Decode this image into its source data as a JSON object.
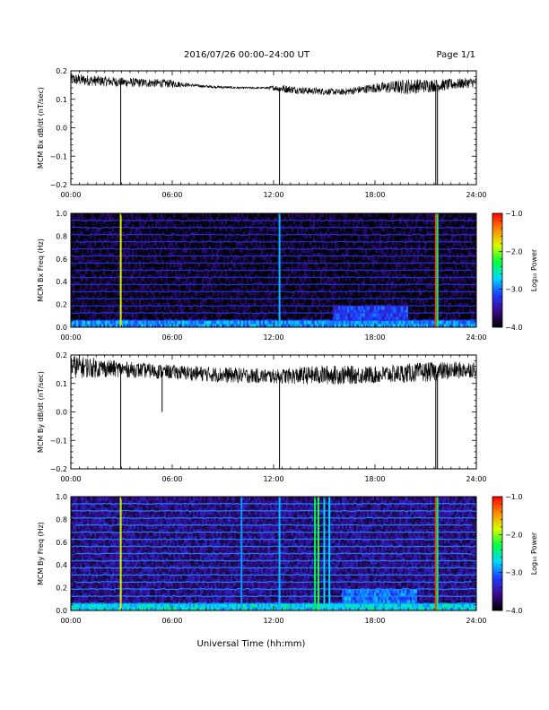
{
  "header": {
    "title": "2016/07/26  00:00–24:00 UT",
    "page": "Page 1/1"
  },
  "footer": {
    "xlabel": "Universal Time (hh:mm)"
  },
  "colorbar": {
    "label": "Log₁₀ Power",
    "ticks": [
      "−1.0",
      "−2.0",
      "−3.0",
      "−4.0"
    ],
    "range": [
      -4.0,
      -1.0
    ],
    "colors": [
      "#000000",
      "#3a0a8c",
      "#1e3cff",
      "#00d8ff",
      "#00ff40",
      "#d8ff00",
      "#ff8c00",
      "#ff0000"
    ]
  },
  "chart_data": [
    {
      "type": "line",
      "ylabel": "MCM Bx dB/dt (nT/sec)",
      "xlim": [
        0,
        24
      ],
      "ylim": [
        -0.2,
        0.2
      ],
      "x_ticks": [
        "00:00",
        "06:00",
        "12:00",
        "18:00",
        "24:00"
      ],
      "y_ticks": [
        "0.2",
        "0.1",
        "0.0",
        "−0.1",
        "−0.2"
      ],
      "y_tick_values": [
        0.2,
        0.1,
        0.0,
        -0.1,
        -0.2
      ],
      "baseline": [
        [
          0,
          0.17
        ],
        [
          3,
          0.16
        ],
        [
          6,
          0.155
        ],
        [
          8,
          0.145
        ],
        [
          10,
          0.14
        ],
        [
          12,
          0.14
        ],
        [
          14,
          0.13
        ],
        [
          16,
          0.125
        ],
        [
          18,
          0.14
        ],
        [
          20,
          0.145
        ],
        [
          22,
          0.15
        ],
        [
          24,
          0.16
        ]
      ],
      "noise": [
        [
          0,
          0.015
        ],
        [
          3,
          0.012
        ],
        [
          6,
          0.01
        ],
        [
          7,
          0.004
        ],
        [
          11.5,
          0.002
        ],
        [
          12.5,
          0.01
        ],
        [
          16,
          0.008
        ],
        [
          18,
          0.012
        ],
        [
          20,
          0.02
        ],
        [
          22,
          0.015
        ],
        [
          24,
          0.012
        ]
      ],
      "spikes": [
        {
          "x": 2.95,
          "y": -0.2
        },
        {
          "x": 12.35,
          "y": -0.2
        },
        {
          "x": 21.6,
          "y": -0.2
        },
        {
          "x": 21.7,
          "y": -0.2
        }
      ]
    },
    {
      "type": "heatmap",
      "ylabel": "MCM Bx Freq (Hz)",
      "xlim": [
        0,
        24
      ],
      "ylim": [
        0,
        1.0
      ],
      "x_ticks": [
        "00:00",
        "06:00",
        "12:00",
        "18:00",
        "24:00"
      ],
      "y_ticks": [
        "1.0",
        "0.8",
        "0.6",
        "0.4",
        "0.2",
        "0.0"
      ],
      "y_tick_values": [
        1.0,
        0.8,
        0.6,
        0.4,
        0.2,
        0.0
      ],
      "bg_level": -3.9,
      "harmonics": [
        0.0625,
        0.125,
        0.1875,
        0.25,
        0.3125,
        0.375,
        0.4375,
        0.5,
        0.5625,
        0.625,
        0.6875,
        0.75,
        0.8125,
        0.875,
        0.9375
      ],
      "harmonic_level": -3.2,
      "low_band_level": -2.9,
      "events": [
        {
          "x": 2.95,
          "level": -1.8
        },
        {
          "x": 12.35,
          "level": -2.8
        },
        {
          "x": 21.6,
          "level": -1.2
        },
        {
          "x": 21.7,
          "level": -2.4
        }
      ],
      "broadband": [
        [
          15.5,
          20.0,
          -3.2
        ]
      ]
    },
    {
      "type": "line",
      "ylabel": "MCM By dB/dt (nT/sec)",
      "xlim": [
        0,
        24
      ],
      "ylim": [
        -0.2,
        0.2
      ],
      "x_ticks": [
        "00:00",
        "06:00",
        "12:00",
        "18:00",
        "24:00"
      ],
      "y_ticks": [
        "0.2",
        "0.1",
        "0.0",
        "−0.1",
        "−0.2"
      ],
      "y_tick_values": [
        0.2,
        0.1,
        0.0,
        -0.1,
        -0.2
      ],
      "baseline": [
        [
          0,
          0.16
        ],
        [
          3,
          0.15
        ],
        [
          6,
          0.14
        ],
        [
          9,
          0.13
        ],
        [
          12,
          0.125
        ],
        [
          15,
          0.13
        ],
        [
          18,
          0.13
        ],
        [
          21,
          0.14
        ],
        [
          24,
          0.15
        ]
      ],
      "noise": [
        [
          0,
          0.03
        ],
        [
          3,
          0.02
        ],
        [
          6,
          0.018
        ],
        [
          9,
          0.02
        ],
        [
          12,
          0.018
        ],
        [
          15,
          0.025
        ],
        [
          18,
          0.022
        ],
        [
          21,
          0.025
        ],
        [
          24,
          0.02
        ]
      ],
      "spikes": [
        {
          "x": 2.95,
          "y": -0.2
        },
        {
          "x": 5.4,
          "y": 0.0
        },
        {
          "x": 12.35,
          "y": -0.2
        },
        {
          "x": 21.6,
          "y": -0.2
        },
        {
          "x": 21.7,
          "y": -0.2
        }
      ]
    },
    {
      "type": "heatmap",
      "ylabel": "MCM By Freq (Hz)",
      "xlim": [
        0,
        24
      ],
      "ylim": [
        0,
        1.0
      ],
      "x_ticks": [
        "00:00",
        "06:00",
        "12:00",
        "18:00",
        "24:00"
      ],
      "y_ticks": [
        "1.0",
        "0.8",
        "0.6",
        "0.4",
        "0.2",
        "0.0"
      ],
      "y_tick_values": [
        1.0,
        0.8,
        0.6,
        0.4,
        0.2,
        0.0
      ],
      "bg_level": -3.6,
      "harmonics": [
        0.0625,
        0.125,
        0.1875,
        0.25,
        0.3125,
        0.375,
        0.4375,
        0.5,
        0.5625,
        0.625,
        0.6875,
        0.75,
        0.8125,
        0.875,
        0.9375
      ],
      "harmonic_level": -2.9,
      "low_band_level": -2.7,
      "events": [
        {
          "x": 2.95,
          "level": -1.8
        },
        {
          "x": 10.1,
          "level": -2.9
        },
        {
          "x": 12.35,
          "level": -2.8
        },
        {
          "x": 14.45,
          "level": -2.3
        },
        {
          "x": 14.65,
          "level": -2.2
        },
        {
          "x": 15.0,
          "level": -2.6
        },
        {
          "x": 15.3,
          "level": -2.7
        },
        {
          "x": 21.6,
          "level": -1.2
        },
        {
          "x": 21.7,
          "level": -2.4
        }
      ],
      "broadband": [
        [
          16.0,
          20.5,
          -3.0
        ]
      ]
    }
  ]
}
